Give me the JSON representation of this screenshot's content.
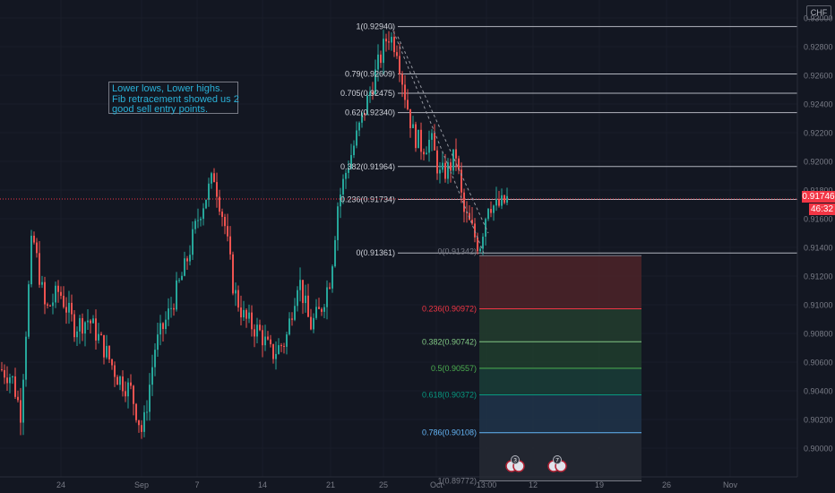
{
  "chart_data": {
    "type": "candlestick",
    "symbol_currency": "CHF",
    "y_axis": {
      "range": [
        0.8989,
        0.9313
      ],
      "tick_labels": [
        "0.93000",
        "0.92800",
        "0.92600",
        "0.92400",
        "0.92200",
        "0.92000",
        "0.91800",
        "0.91600",
        "0.91400",
        "0.91200",
        "0.91000",
        "0.90800",
        "0.90600",
        "0.90400",
        "0.90200",
        "0.90000"
      ],
      "tick_values": [
        0.93,
        0.928,
        0.926,
        0.924,
        0.922,
        0.92,
        0.918,
        0.916,
        0.914,
        0.912,
        0.91,
        0.908,
        0.906,
        0.904,
        0.902,
        0.9
      ]
    },
    "x_axis": {
      "tick_labels": [
        "24",
        "Sep",
        "7",
        "14",
        "21",
        "25",
        "Oct",
        "13:00",
        "12",
        "19",
        "26",
        "Nov"
      ]
    },
    "last_price": "0.91746",
    "countdown": "46:32",
    "fib_upper": [
      {
        "label": "1(0.92940)",
        "value": 0.9294
      },
      {
        "label": "0.79(0.92609)",
        "value": 0.92609
      },
      {
        "label": "0.705(0.92475)",
        "value": 0.92475
      },
      {
        "label": "0.62(0.92340)",
        "value": 0.9234
      },
      {
        "label": "0.382(0.91964)",
        "value": 0.91964
      },
      {
        "label": "0.236(0.91734)",
        "value": 0.91734
      },
      {
        "label": "0(0.91361)",
        "value": 0.91361
      }
    ],
    "fib_lower": [
      {
        "label": "0(0.91342)",
        "value": 0.91342,
        "color": "#787b86"
      },
      {
        "label": "0.236(0.90972)",
        "value": 0.90972,
        "color": "#f23645"
      },
      {
        "label": "0.382(0.90742)",
        "value": 0.90742,
        "color": "#81c784"
      },
      {
        "label": "0.5(0.90557)",
        "value": 0.90557,
        "color": "#4caf50"
      },
      {
        "label": "0.618(0.90372)",
        "value": 0.90372,
        "color": "#089981"
      },
      {
        "label": "0.786(0.90108)",
        "value": 0.90108,
        "color": "#64b5f6"
      },
      {
        "label": "1(0.89772)",
        "value": 0.89772,
        "color": "#787b86"
      }
    ],
    "annotation_lines": [
      "Lower lows, Lower highs.",
      "Fib retracement showed us 2",
      "good sell entry points."
    ],
    "event_counts": [
      "3",
      "7"
    ],
    "colors": {
      "up": "#26a69a",
      "down": "#ef5350",
      "background": "#131722",
      "grid": "#1e222d"
    }
  }
}
